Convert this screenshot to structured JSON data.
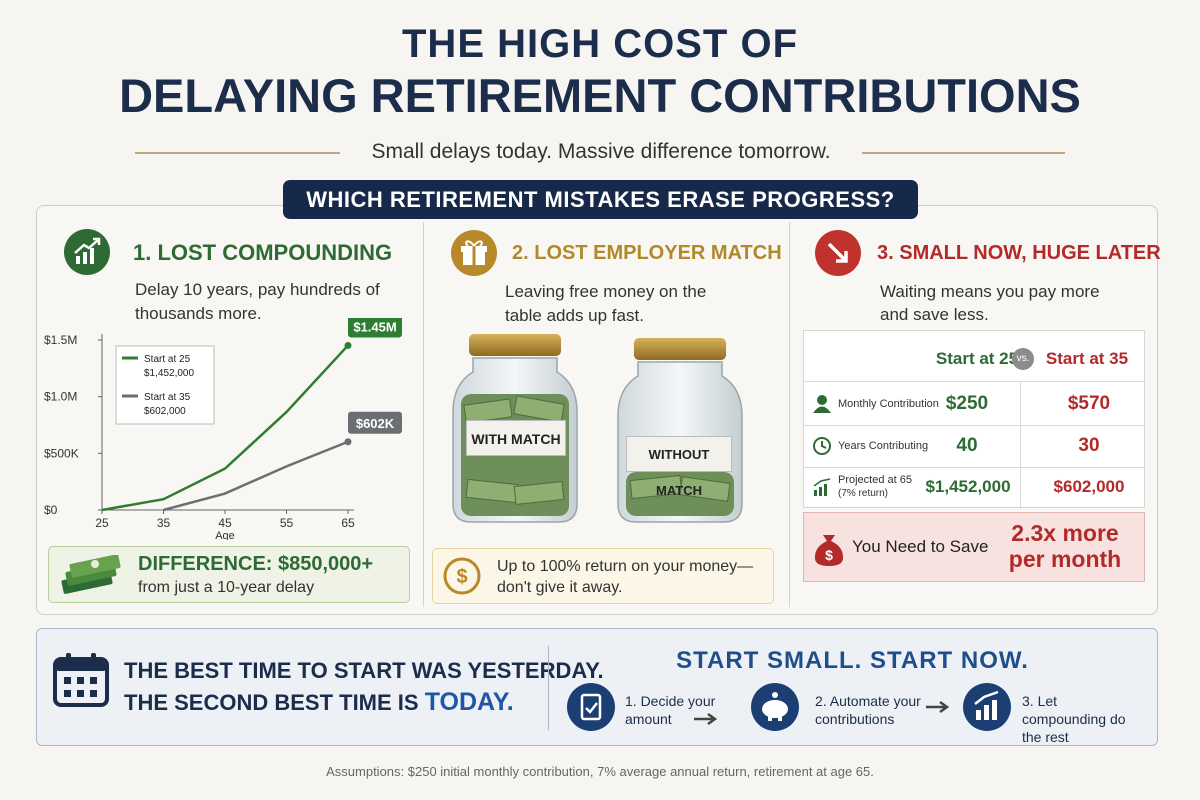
{
  "header": {
    "title_line1": "THE HIGH COST OF",
    "title_line2": "DELAYING RETIREMENT CONTRIBUTIONS",
    "subtitle": "Small delays today. Massive difference tomorrow.",
    "banner": "WHICH RETIREMENT MISTAKES ERASE PROGRESS?"
  },
  "panels": [
    {
      "title": "1. LOST COMPOUNDING",
      "text": "Delay 10 years, pay hundreds of thousands more.",
      "callout_title": "DIFFERENCE: $850,000+",
      "callout_text": "from just a 10-year delay"
    },
    {
      "title": "2. LOST EMPLOYER MATCH",
      "text": "Leaving free money on the table adds up fast.",
      "jar_labels": [
        "WITH MATCH",
        "WITHOUT MATCH"
      ],
      "callout_text": "Up to 100% return on your money—don't give it away."
    },
    {
      "title": "3. SMALL NOW, HUGE LATER",
      "text": "Waiting means you pay more and save less.",
      "table": {
        "columns": [
          "Start at 25",
          "vs.",
          "Start at 35"
        ],
        "rows": [
          {
            "label": "Monthly Contribution",
            "a": "$250",
            "b": "$570"
          },
          {
            "label": "Years Contributing",
            "a": "40",
            "b": "30"
          },
          {
            "label": "Projected at 65",
            "note": "(7% return)",
            "a": "$1,452,000",
            "b": "$602,000"
          }
        ]
      },
      "result_label": "You Need to Save",
      "result_value": "2.3x more per month"
    }
  ],
  "chart_data": {
    "type": "line",
    "x_label": "Age",
    "x": [
      25,
      35,
      45,
      55,
      65
    ],
    "xlim": [
      25,
      65
    ],
    "xticks": [
      25,
      35,
      45,
      55,
      65
    ],
    "ylim": [
      0,
      1500000
    ],
    "yticks": [
      {
        "value": 0,
        "label": "$0"
      },
      {
        "value": 500000,
        "label": "$500K"
      },
      {
        "value": 1000000,
        "label": "$1.0M"
      },
      {
        "value": 1500000,
        "label": "$1.5M"
      }
    ],
    "series": [
      {
        "name": "Start at 25",
        "legend_value": "$1,452,000",
        "color": "#2e7d32",
        "values": [
          0,
          95000,
          365000,
          865000,
          1452000
        ],
        "value_labels": [
          null,
          null,
          null,
          null,
          "$1.45M"
        ]
      },
      {
        "name": "Start at 35",
        "legend_value": "$602,000",
        "color": "#6b6f73",
        "values": [
          null,
          0,
          145000,
          385000,
          602000
        ],
        "value_labels": [
          null,
          null,
          null,
          null,
          "$602K"
        ]
      }
    ]
  },
  "footer": {
    "quote_line1": "THE BEST TIME TO START WAS YESTERDAY.",
    "quote_line2_prefix": "THE SECOND BEST TIME IS",
    "quote_line2_emphasis": "TODAY.",
    "cta": "START SMALL. START NOW.",
    "steps": [
      "1. Decide your amount",
      "2. Automate your contributions",
      "3. Let compounding do the rest"
    ]
  },
  "assumptions": "Assumptions: $250 initial monthly contribution, 7% average annual return, retirement at age 65."
}
